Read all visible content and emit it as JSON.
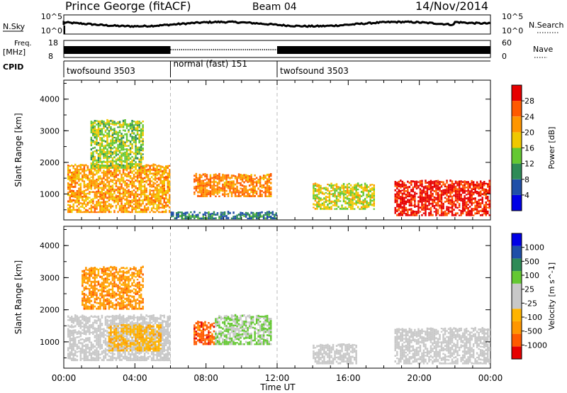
{
  "header": {
    "station": "Prince George (fitACF)",
    "beam": "Beam 04",
    "date": "14/Nov/2014"
  },
  "summary_panel": {
    "left_labels": {
      "nsky": "N.Sky",
      "freq_top": "Freq.",
      "freq_unit": "[MHz]",
      "cpid": "CPID"
    },
    "right_labels": {
      "nsearch": "N.Search",
      "nave": "Nave"
    },
    "noise_ticks_left": [
      "10^5",
      "10^0"
    ],
    "noise_ticks_right": [
      "10^5",
      "10^0"
    ],
    "freq_ticks": [
      "18",
      "8"
    ],
    "nave_ticks": [
      "60",
      "0"
    ],
    "cpid_segments": [
      {
        "label": "twofsound 3503",
        "start_hour": 0,
        "end_hour": 6
      },
      {
        "label": "normal (fast) 151",
        "start_hour": 6,
        "end_hour": 12
      },
      {
        "label": "twofsound 3503",
        "start_hour": 12,
        "end_hour": 24
      }
    ]
  },
  "time_axis": {
    "label": "Time UT",
    "ticks": [
      "00:00",
      "04:00",
      "08:00",
      "12:00",
      "16:00",
      "20:00",
      "00:00"
    ]
  },
  "colors": {
    "cbar_power": [
      "#0000e6",
      "#1f4fa8",
      "#2e8b57",
      "#64c832",
      "#f0c800",
      "#ff9600",
      "#ff5a00",
      "#e60000"
    ],
    "cbar_velocity": [
      "#e60000",
      "#ff5a00",
      "#ff9600",
      "#ffb400",
      "#c8c8c8",
      "#c8c8c8",
      "#64c832",
      "#2e8b57",
      "#1f4fa8",
      "#0000e6"
    ]
  },
  "chart_data": [
    {
      "type": "heatmap",
      "name": "power",
      "ylabel": "Slant Range [km]",
      "xlabel": "Time UT",
      "x_range_hours": [
        0,
        24
      ],
      "ylim": [
        180,
        4600
      ],
      "yticks": [
        "1000",
        "2000",
        "3000",
        "4000"
      ],
      "colorbar": {
        "label": "Power [dB]",
        "ticks": [
          "4",
          "8",
          "12",
          "16",
          "20",
          "24",
          "28"
        ],
        "range": [
          0,
          30
        ]
      },
      "echo_regions": [
        {
          "t0": 0.2,
          "t1": 6.0,
          "r0": 400,
          "r1": 1900,
          "value": 20
        },
        {
          "t0": 1.5,
          "t1": 4.5,
          "r0": 1800,
          "r1": 3300,
          "value": 14
        },
        {
          "t0": 7.3,
          "t1": 11.7,
          "r0": 900,
          "r1": 1600,
          "value": 22
        },
        {
          "t0": 6.0,
          "t1": 12.0,
          "r0": 200,
          "r1": 400,
          "value": 8
        },
        {
          "t0": 14.0,
          "t1": 17.5,
          "r0": 500,
          "r1": 1300,
          "value": 16
        },
        {
          "t0": 18.6,
          "t1": 24.0,
          "r0": 300,
          "r1": 1400,
          "value": 28
        }
      ]
    },
    {
      "type": "heatmap",
      "name": "velocity",
      "ylabel": "Slant Range [km]",
      "xlabel": "Time UT",
      "x_range_hours": [
        0,
        24
      ],
      "ylim": [
        180,
        4600
      ],
      "yticks": [
        "1000",
        "2000",
        "3000",
        "4000"
      ],
      "colorbar": {
        "label": "Velocity [m s^-1]",
        "ticks": [
          "1000",
          "500",
          "100",
          "25",
          "-25",
          "-100",
          "-500",
          "-1000"
        ],
        "range": [
          -1000,
          1000
        ]
      },
      "echo_regions": [
        {
          "t0": 0.2,
          "t1": 6.0,
          "r0": 400,
          "r1": 1800,
          "value": 0
        },
        {
          "t0": 2.5,
          "t1": 5.5,
          "r0": 700,
          "r1": 1500,
          "value": -300
        },
        {
          "t0": 1.0,
          "t1": 4.5,
          "r0": 2000,
          "r1": 3300,
          "value": -500
        },
        {
          "t0": 7.3,
          "t1": 8.5,
          "r0": 900,
          "r1": 1600,
          "value": -700
        },
        {
          "t0": 8.5,
          "t1": 11.7,
          "r0": 900,
          "r1": 1800,
          "value": 200
        },
        {
          "t0": 14.0,
          "t1": 16.5,
          "r0": 300,
          "r1": 900,
          "value": 50
        },
        {
          "t0": 18.6,
          "t1": 24.0,
          "r0": 300,
          "r1": 1400,
          "value": 0
        }
      ]
    }
  ]
}
